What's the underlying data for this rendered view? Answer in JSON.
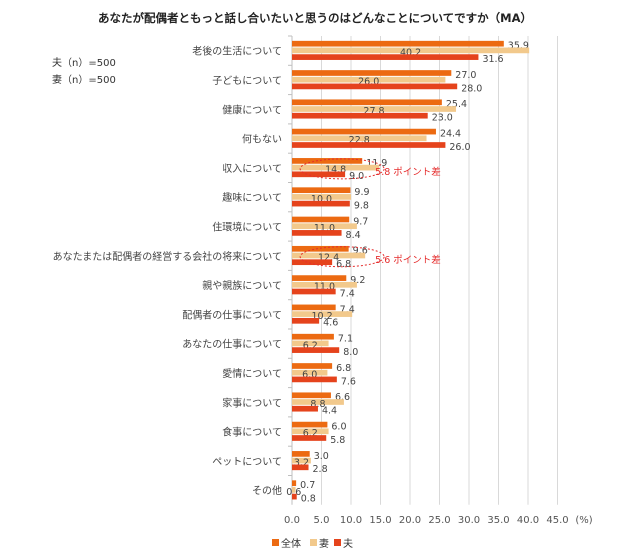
{
  "chart_data": {
    "type": "bar",
    "orientation": "horizontal",
    "title": "あなたが配偶者ともっと話し合いたいと思うのはどんなことについてですか（MA）",
    "sample_notes": [
      "夫（n）=500",
      "妻（n）=500"
    ],
    "unit_label": "(%)",
    "xlim": [
      0,
      45
    ],
    "xticks": [
      "0.0",
      "5.0",
      "10.0",
      "15.0",
      "20.0",
      "25.0",
      "30.0",
      "35.0",
      "40.0",
      "45.0"
    ],
    "grid": true,
    "legend_position": "bottom",
    "categories": [
      "老後の生活について",
      "子どもについて",
      "健康について",
      "何もない",
      "収入について",
      "趣味について",
      "住環境について",
      "あなたまたは配偶者の経営する会社の将来について",
      "親や親族について",
      "配偶者の仕事について",
      "あなたの仕事について",
      "愛情について",
      "家事について",
      "食事について",
      "ペットについて",
      "その他"
    ],
    "series": [
      {
        "name": "全体",
        "color": "#EC6A12",
        "values": [
          35.9,
          27.0,
          25.4,
          24.4,
          11.9,
          9.9,
          9.7,
          9.6,
          9.2,
          7.4,
          7.1,
          6.8,
          6.6,
          6.0,
          3.0,
          0.7
        ]
      },
      {
        "name": "妻",
        "color": "#F2C98C",
        "values": [
          40.2,
          26.0,
          27.8,
          22.8,
          14.8,
          10.0,
          11.0,
          12.4,
          11.0,
          10.2,
          6.2,
          6.0,
          8.8,
          6.2,
          3.2,
          0.6
        ]
      },
      {
        "name": "夫",
        "color": "#E5431C",
        "values": [
          31.6,
          28.0,
          23.0,
          26.0,
          9.0,
          9.8,
          8.4,
          6.8,
          7.4,
          4.6,
          8.0,
          7.6,
          4.4,
          5.8,
          2.8,
          0.8
        ]
      }
    ],
    "annotations": [
      {
        "category_index": 4,
        "text": "5.8 ポイント差"
      },
      {
        "category_index": 7,
        "text": "5.6 ポイント差"
      }
    ]
  }
}
